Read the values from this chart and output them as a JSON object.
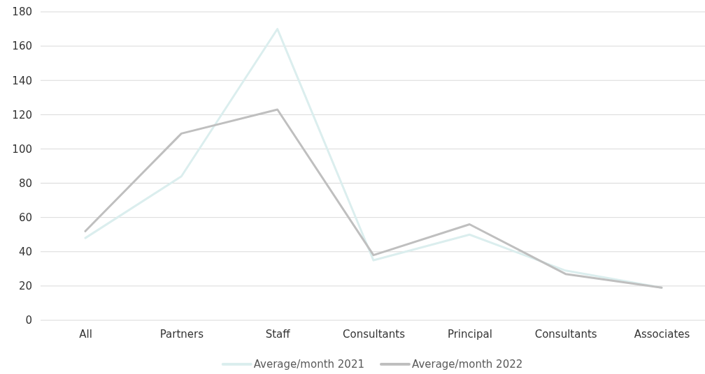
{
  "chart_data": {
    "type": "line",
    "categories": [
      "All",
      "Partners",
      "Staff",
      "Consultants",
      "Principal",
      "Consultants",
      "Associates"
    ],
    "series": [
      {
        "name": "Average/month 2021",
        "color": "#dbeeee",
        "values": [
          48,
          84,
          170,
          35,
          50,
          29,
          19
        ]
      },
      {
        "name": "Average/month 2022",
        "color": "#bfbfbf",
        "values": [
          52,
          109,
          123,
          38,
          56,
          27,
          19
        ]
      }
    ],
    "ylim": [
      0,
      180
    ],
    "yticks": [
      0,
      20,
      40,
      60,
      80,
      100,
      120,
      140,
      160,
      180
    ],
    "grid": "y",
    "legend": "bottom",
    "marker": "none",
    "line_style": "solid"
  }
}
